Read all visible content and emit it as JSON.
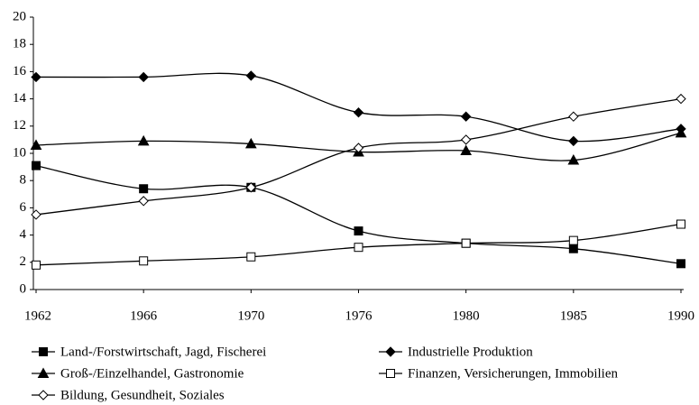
{
  "chart_data": {
    "type": "line",
    "categories": [
      "1962",
      "1966",
      "1970",
      "1976",
      "1980",
      "1985",
      "1990"
    ],
    "ylim": [
      0,
      20
    ],
    "yticks": [
      0,
      2,
      4,
      6,
      8,
      10,
      12,
      14,
      16,
      18,
      20
    ],
    "smooth": true,
    "series": [
      {
        "name": "Land-/Forstwirtschaft, Jagd, Fischerei",
        "color": "#000000",
        "marker": "square",
        "filled": true,
        "values": [
          9.1,
          7.4,
          7.5,
          4.3,
          3.4,
          3.0,
          1.9
        ]
      },
      {
        "name": "Industrielle Produktion",
        "color": "#000000",
        "marker": "diamond",
        "filled": true,
        "values": [
          15.6,
          15.6,
          15.7,
          13.0,
          12.7,
          10.9,
          11.8
        ]
      },
      {
        "name": "Groß-/Einzelhandel, Gastronomie",
        "color": "#000000",
        "marker": "triangle",
        "filled": true,
        "values": [
          10.6,
          10.9,
          10.7,
          10.1,
          10.2,
          9.5,
          11.5
        ]
      },
      {
        "name": "Finanzen, Versicherungen, Immobilien",
        "color": "#000000",
        "marker": "square",
        "filled": false,
        "values": [
          1.8,
          2.1,
          2.4,
          3.1,
          3.4,
          3.6,
          4.8
        ]
      },
      {
        "name": "Bildung, Gesundheit, Soziales",
        "color": "#000000",
        "marker": "diamond",
        "filled": false,
        "values": [
          5.5,
          6.5,
          7.5,
          10.4,
          11.0,
          12.7,
          14.0
        ]
      }
    ]
  }
}
